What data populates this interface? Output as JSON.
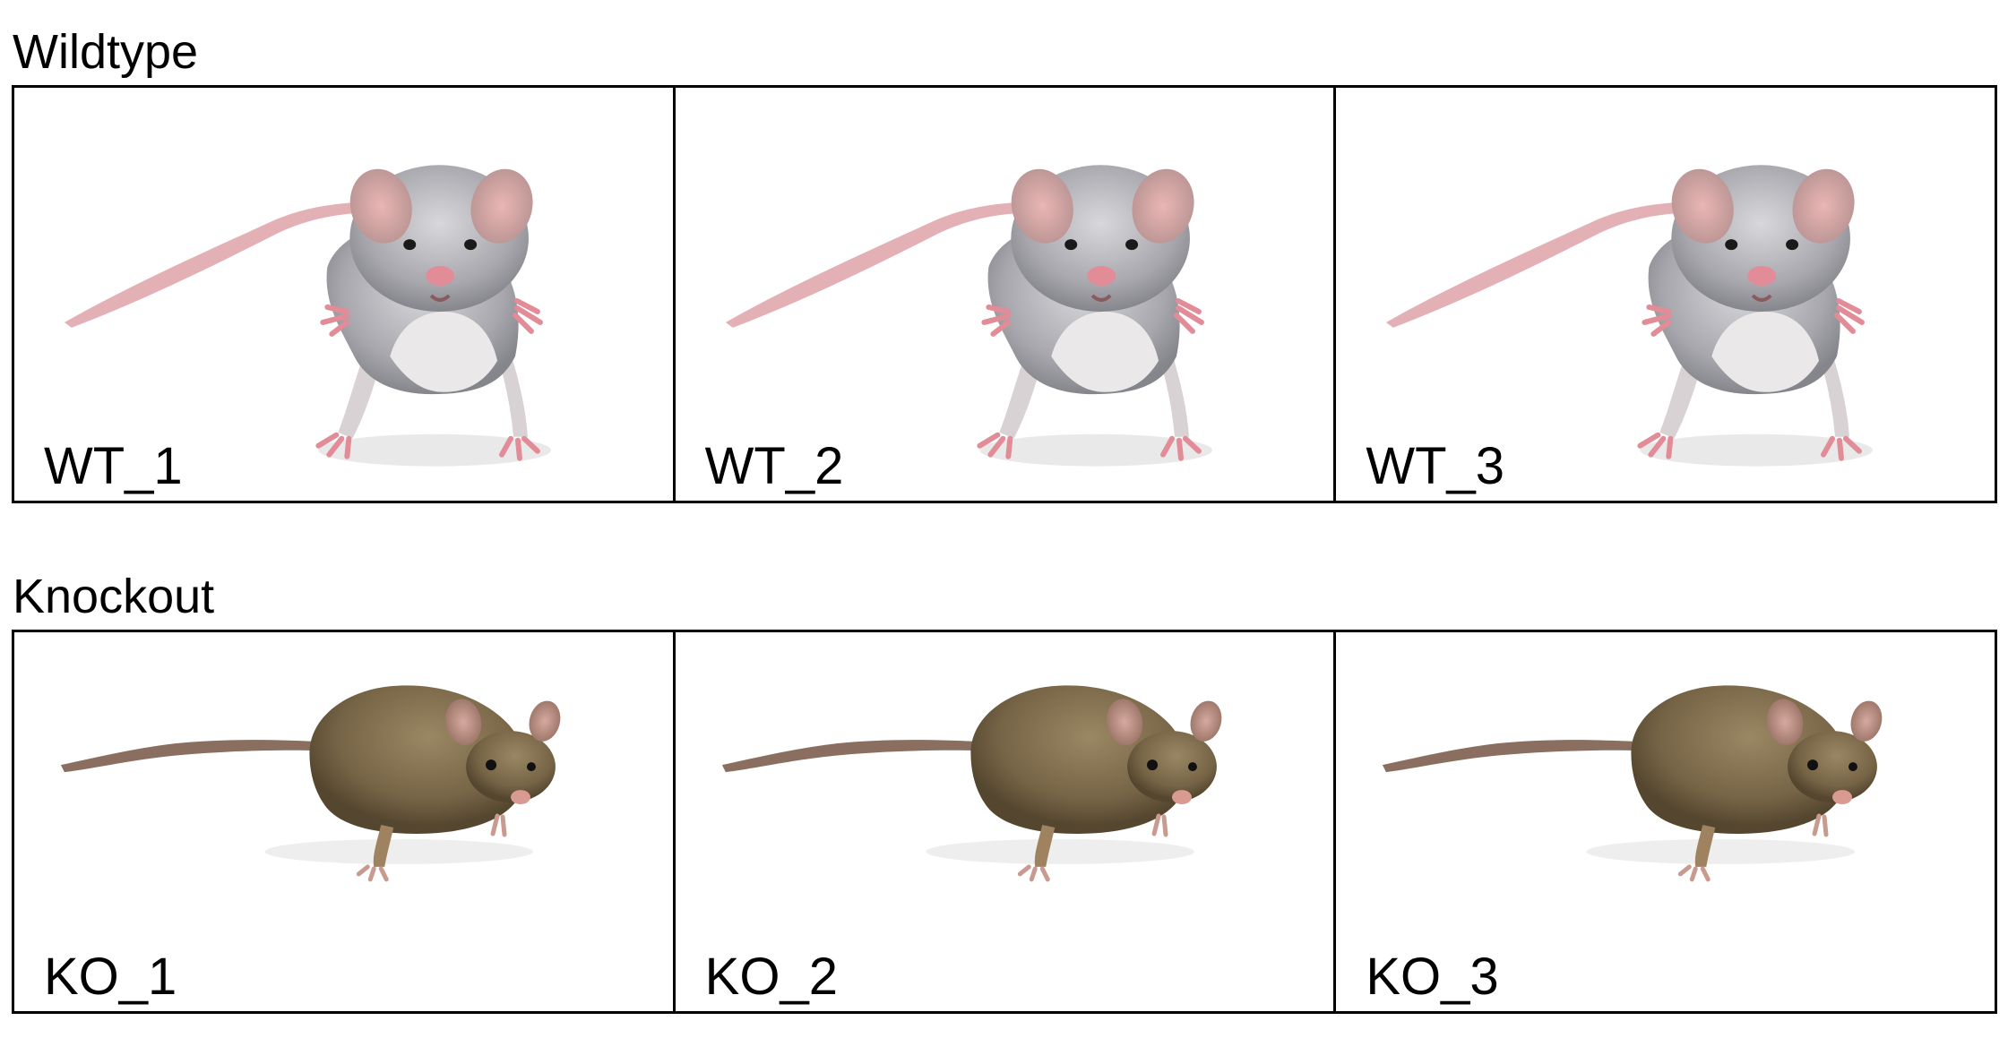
{
  "wildtype": {
    "title": "Wildtype",
    "panels": [
      {
        "label": "WT_1"
      },
      {
        "label": "WT_2"
      },
      {
        "label": "WT_3"
      }
    ],
    "fur_color": "#a9a9ae",
    "skin_color": "#e6a8ae"
  },
  "knockout": {
    "title": "Knockout",
    "panels": [
      {
        "label": "KO_1"
      },
      {
        "label": "KO_2"
      },
      {
        "label": "KO_3"
      }
    ],
    "fur_color": "#7a6a4e",
    "skin_color": "#c99a8f"
  }
}
